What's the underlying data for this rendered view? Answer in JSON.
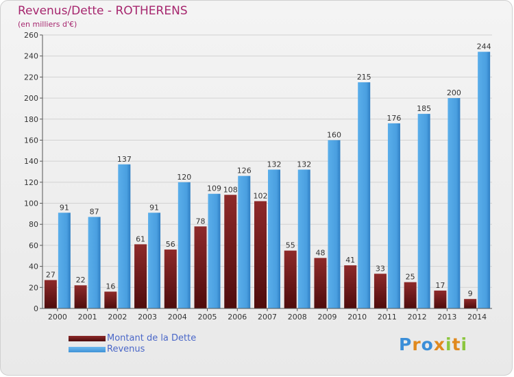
{
  "chart_data": {
    "type": "bar",
    "title": "Revenus/Dette - ROTHERENS",
    "subtitle": "(en milliers d'€)",
    "categories": [
      "2000",
      "2001",
      "2002",
      "2003",
      "2004",
      "2005",
      "2006",
      "2007",
      "2008",
      "2009",
      "2010",
      "2011",
      "2012",
      "2013",
      "2014"
    ],
    "series": [
      {
        "name": "Montant de la Dette",
        "color": "#7b1c1c",
        "values": [
          27,
          22,
          16,
          61,
          56,
          78,
          108,
          102,
          55,
          48,
          41,
          33,
          25,
          17,
          9
        ]
      },
      {
        "name": "Revenus",
        "color": "#4da3e6",
        "values": [
          91,
          87,
          137,
          91,
          120,
          109,
          126,
          132,
          132,
          160,
          215,
          176,
          185,
          200,
          244
        ]
      }
    ],
    "ylim": [
      0,
      260
    ],
    "yticks": [
      0,
      20,
      40,
      60,
      80,
      100,
      120,
      140,
      160,
      180,
      200,
      220,
      240,
      260
    ],
    "grid": true,
    "legend": "bottom-left"
  },
  "brand": {
    "letters": [
      "P",
      "r",
      "o",
      "x",
      "i",
      "t",
      "i"
    ],
    "colors": [
      "#3b8ed8",
      "#e0891e",
      "#3b8ed8",
      "#e0891e",
      "#8cc63f",
      "#e0891e",
      "#8cc63f"
    ]
  }
}
